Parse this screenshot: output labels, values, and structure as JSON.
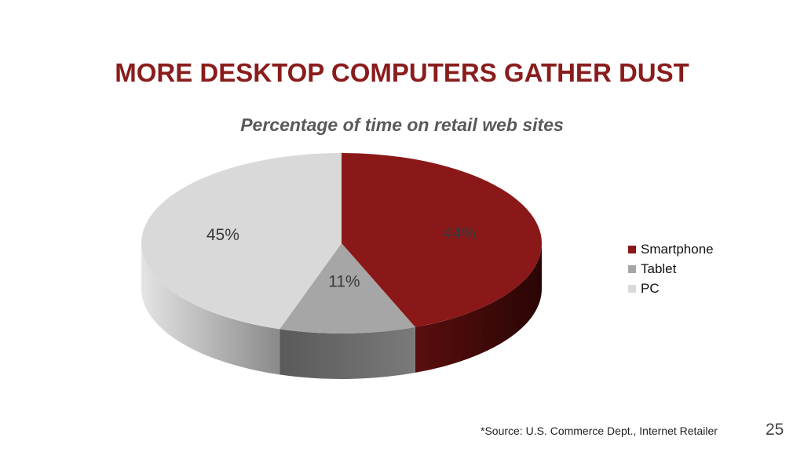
{
  "slide": {
    "title": "MORE DESKTOP COMPUTERS GATHER DUST",
    "source": "*Source: U.S. Commerce Dept., Internet Retailer",
    "page_number": "25"
  },
  "chart_data": {
    "type": "pie",
    "title": "Percentage of time on retail web sites",
    "categories": [
      "Smartphone",
      "Tablet",
      "PC"
    ],
    "values": [
      44,
      11,
      45
    ],
    "data_labels": [
      "44%",
      "11%",
      "45%"
    ],
    "colors": [
      "#8b1818",
      "#a6a6a6",
      "#d9d9d9"
    ],
    "legend_position": "right",
    "style": "3d"
  }
}
